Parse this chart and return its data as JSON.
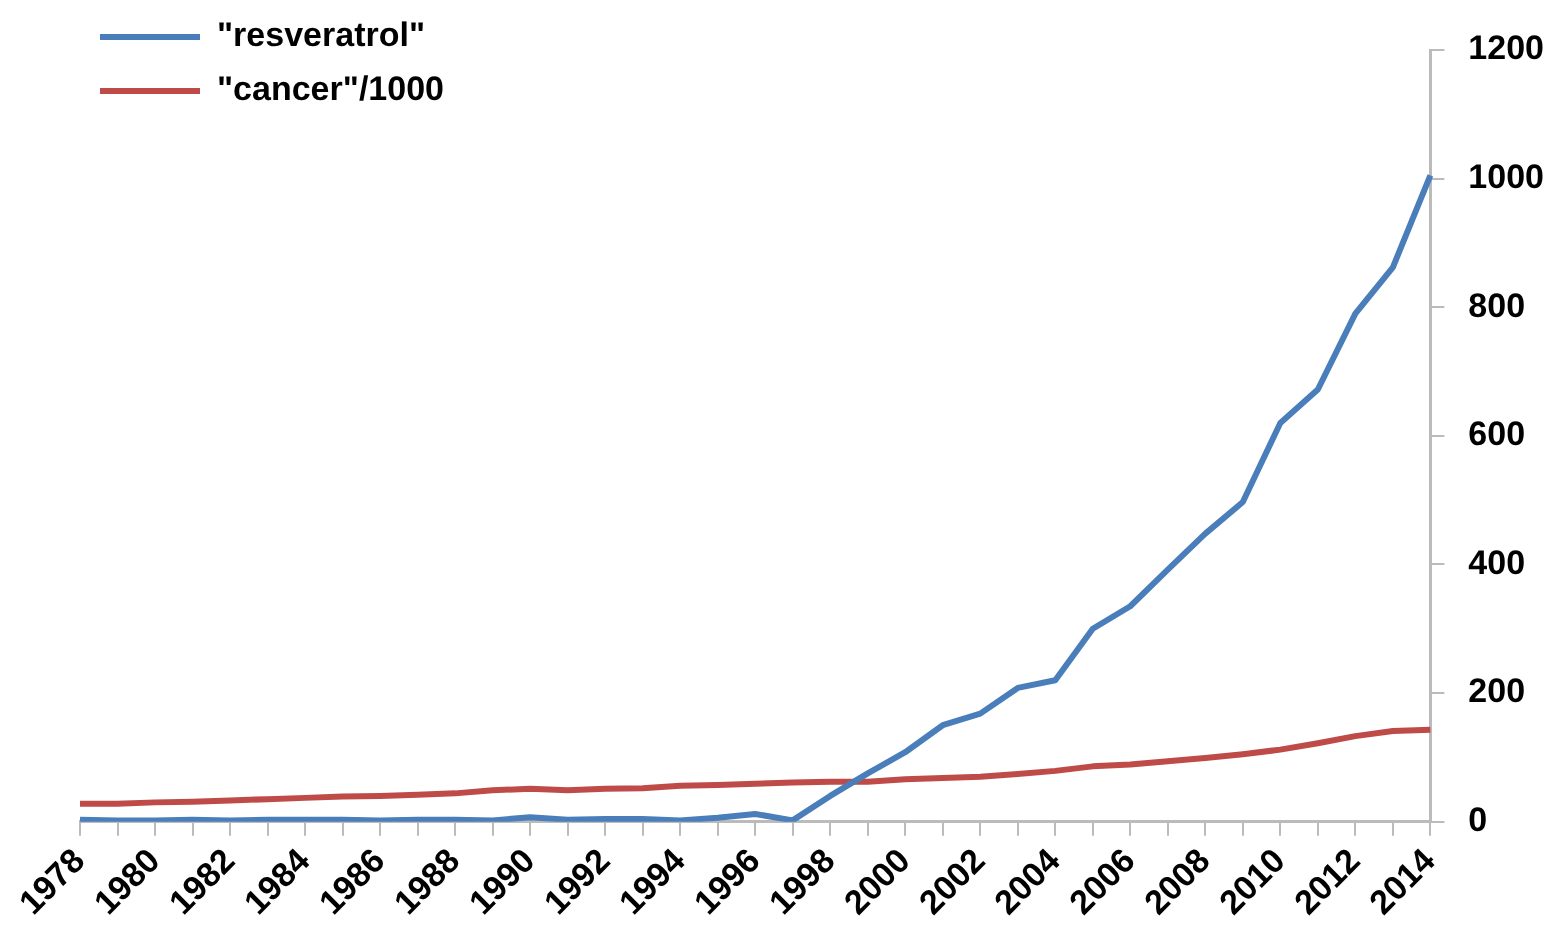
{
  "chart_data": {
    "type": "line",
    "categories": [
      "1978",
      null,
      "1980",
      null,
      "1982",
      null,
      "1984",
      null,
      "1986",
      null,
      "1988",
      null,
      "1990",
      null,
      "1992",
      null,
      "1994",
      null,
      "1996",
      null,
      "1998",
      null,
      "2000",
      null,
      "2002",
      null,
      "2004",
      null,
      "2006",
      null,
      "2008",
      null,
      "2010",
      null,
      "2012",
      null,
      "2014"
    ],
    "series": [
      {
        "name": "\"resveratrol\"",
        "color": "#4a7ebb",
        "values": [
          3,
          2,
          2,
          3,
          2,
          3,
          3,
          3,
          2,
          3,
          3,
          2,
          7,
          3,
          4,
          4,
          2,
          6,
          12,
          2,
          40,
          75,
          108,
          150,
          168,
          208,
          220,
          300,
          335,
          392,
          448,
          497,
          620,
          672,
          790,
          862,
          1005
        ]
      },
      {
        "name": "\"cancer\"/1000",
        "color": "#be4b48",
        "values": [
          28,
          28,
          30,
          31,
          33,
          35,
          37,
          39,
          40,
          42,
          44,
          49,
          51,
          49,
          51,
          52,
          56,
          57,
          59,
          61,
          62,
          62,
          66,
          68,
          70,
          74,
          79,
          86,
          89,
          94,
          99,
          105,
          112,
          122,
          133,
          141,
          143
        ]
      }
    ],
    "ylim": [
      0,
      1200
    ],
    "yticks": [
      0,
      200,
      400,
      600,
      800,
      1000,
      1200
    ],
    "grid": false,
    "legend": "top left",
    "marker": "none",
    "line_style": "solid"
  }
}
